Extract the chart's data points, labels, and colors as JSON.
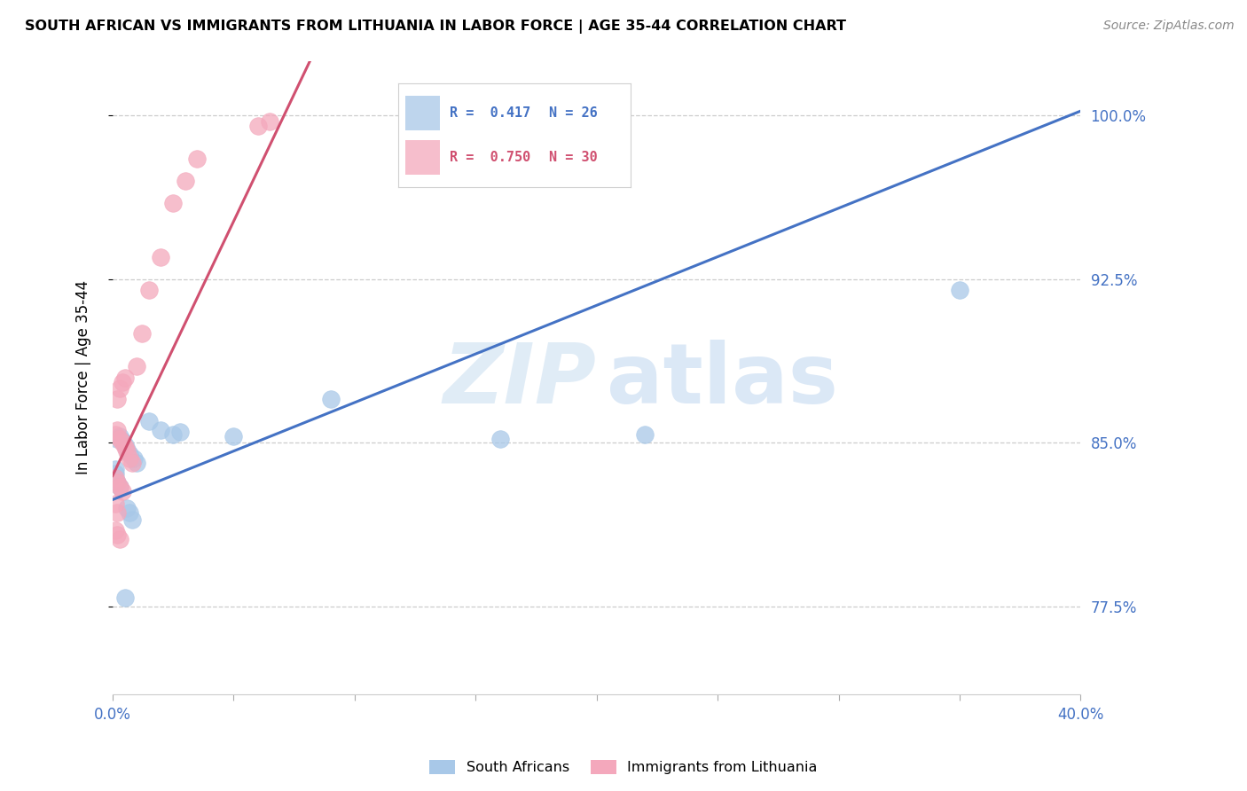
{
  "title": "SOUTH AFRICAN VS IMMIGRANTS FROM LITHUANIA IN LABOR FORCE | AGE 35-44 CORRELATION CHART",
  "source": "Source: ZipAtlas.com",
  "ylabel": "In Labor Force | Age 35-44",
  "xmin": 0.0,
  "xmax": 0.4,
  "ymin": 0.735,
  "ymax": 1.025,
  "yticks": [
    0.775,
    0.85,
    0.925,
    1.0
  ],
  "ytick_labels": [
    "77.5%",
    "85.0%",
    "92.5%",
    "100.0%"
  ],
  "xticks": [
    0.0,
    0.05,
    0.1,
    0.15,
    0.2,
    0.25,
    0.3,
    0.35,
    0.4
  ],
  "xtick_labels": [
    "0.0%",
    "",
    "",
    "",
    "",
    "",
    "",
    "",
    "40.0%"
  ],
  "blue_color": "#a8c8e8",
  "pink_color": "#f4a8bc",
  "blue_line_color": "#4472c4",
  "pink_line_color": "#d05070",
  "r_blue": 0.417,
  "n_blue": 26,
  "r_pink": 0.75,
  "n_pink": 30,
  "blue_x": [
    0.002,
    0.003,
    0.004,
    0.005,
    0.006,
    0.007,
    0.009,
    0.01,
    0.015,
    0.02,
    0.025,
    0.028,
    0.001,
    0.001,
    0.001,
    0.002,
    0.003,
    0.006,
    0.007,
    0.008,
    0.05,
    0.09,
    0.16,
    0.22,
    0.35,
    0.005
  ],
  "blue_y": [
    0.852,
    0.853,
    0.851,
    0.849,
    0.847,
    0.845,
    0.843,
    0.841,
    0.86,
    0.856,
    0.854,
    0.855,
    0.838,
    0.836,
    0.834,
    0.832,
    0.83,
    0.82,
    0.818,
    0.815,
    0.853,
    0.87,
    0.852,
    0.854,
    0.92,
    0.779
  ],
  "pink_x": [
    0.001,
    0.002,
    0.003,
    0.004,
    0.005,
    0.006,
    0.007,
    0.008,
    0.002,
    0.003,
    0.004,
    0.005,
    0.001,
    0.002,
    0.003,
    0.004,
    0.01,
    0.012,
    0.015,
    0.02,
    0.025,
    0.03,
    0.035,
    0.06,
    0.065,
    0.001,
    0.002,
    0.001,
    0.002,
    0.003
  ],
  "pink_y": [
    0.854,
    0.856,
    0.852,
    0.85,
    0.848,
    0.846,
    0.843,
    0.841,
    0.87,
    0.875,
    0.878,
    0.88,
    0.834,
    0.832,
    0.83,
    0.828,
    0.885,
    0.9,
    0.92,
    0.935,
    0.96,
    0.97,
    0.98,
    0.995,
    0.997,
    0.822,
    0.818,
    0.81,
    0.808,
    0.806
  ],
  "watermark_zip": "ZIP",
  "watermark_atlas": "atlas",
  "blue_line_x0": 0.0,
  "blue_line_y0": 0.824,
  "blue_line_x1": 0.4,
  "blue_line_y1": 1.002,
  "pink_line_x0": 0.0,
  "pink_line_y0": 0.835,
  "pink_line_x1": 0.07,
  "pink_line_y1": 0.998
}
